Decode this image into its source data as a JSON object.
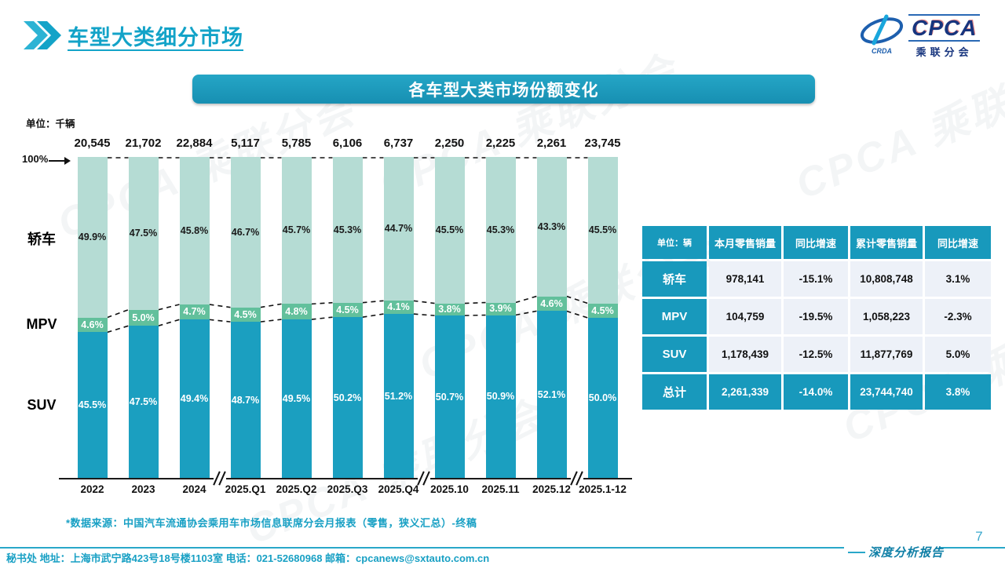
{
  "header": {
    "title": "车型大类细分市场"
  },
  "logo": {
    "cpca": "CPCA",
    "sub": "乘联分会",
    "crda": "CRDA"
  },
  "banner": {
    "title": "各车型大类市场份额变化"
  },
  "chart_data": {
    "type": "bar",
    "stacked_percent": true,
    "title": "各车型大类市场份额变化",
    "unit_label": "单位：千辆",
    "axis_top_label": "100%",
    "categories": [
      "2022",
      "2023",
      "2024",
      "2025.Q1",
      "2025.Q2",
      "2025.Q3",
      "2025.Q4",
      "2025.10",
      "2025.11",
      "2025.12",
      "2025.1-12"
    ],
    "totals": [
      "20,545",
      "21,702",
      "22,884",
      "5,117",
      "5,785",
      "6,106",
      "6,737",
      "2,250",
      "2,225",
      "2,261",
      "23,745"
    ],
    "series": [
      {
        "name": "轿车",
        "color": "#b5dcd4",
        "label_color": "#1a1a1a",
        "values": [
          49.9,
          47.5,
          45.8,
          46.7,
          45.7,
          45.3,
          44.7,
          45.5,
          45.3,
          43.3,
          45.5
        ]
      },
      {
        "name": "MPV",
        "color": "#62c09c",
        "label_color": "#ffffff",
        "values": [
          4.6,
          5.0,
          4.7,
          4.5,
          4.8,
          4.5,
          4.1,
          3.8,
          3.9,
          4.6,
          4.5
        ]
      },
      {
        "name": "SUV",
        "color": "#1b9fc0",
        "label_color": "#ffffff",
        "values": [
          45.5,
          47.5,
          49.4,
          48.7,
          49.5,
          50.2,
          51.2,
          50.7,
          50.9,
          52.1,
          50.0
        ]
      }
    ],
    "axis_breaks_after": [
      "2024",
      "2025.Q4",
      "2025.12"
    ],
    "ylim": [
      0,
      100
    ],
    "legend_position": "left"
  },
  "table": {
    "unit_header": "单位：辆",
    "columns": [
      "本月零售销量",
      "同比增速",
      "累计零售销量",
      "同比增速"
    ],
    "rows": [
      {
        "label": "轿车",
        "values": [
          "978,141",
          "-15.1%",
          "10,808,748",
          "3.1%"
        ],
        "highlight": false
      },
      {
        "label": "MPV",
        "values": [
          "104,759",
          "-19.5%",
          "1,058,223",
          "-2.3%"
        ],
        "highlight": false
      },
      {
        "label": "SUV",
        "values": [
          "1,178,439",
          "-12.5%",
          "11,877,769",
          "5.0%"
        ],
        "highlight": false
      },
      {
        "label": "总计",
        "values": [
          "2,261,339",
          "-14.0%",
          "23,744,740",
          "3.8%"
        ],
        "highlight": true
      }
    ]
  },
  "footnote": "*数据来源：中国汽车流通协会乘用车市场信息联席分会月报表（零售，狭义汇总）-终稿",
  "footer": {
    "contact": "秘书处  地址：上海市武宁路423号18号楼1103室 电话：021-52680968   邮箱：cpcanews@sxtauto.com.cn",
    "report_label": "深度分析报告",
    "page_number": "7"
  },
  "watermark": "CPCA 乘联分会",
  "colors": {
    "accent": "#13a3c8",
    "banner": "#1899bb",
    "sedan": "#b5dcd4",
    "mpv": "#62c09c",
    "suv": "#1b9fc0",
    "table_header": "#1899bc",
    "table_row_bg": "#edf1f8"
  }
}
